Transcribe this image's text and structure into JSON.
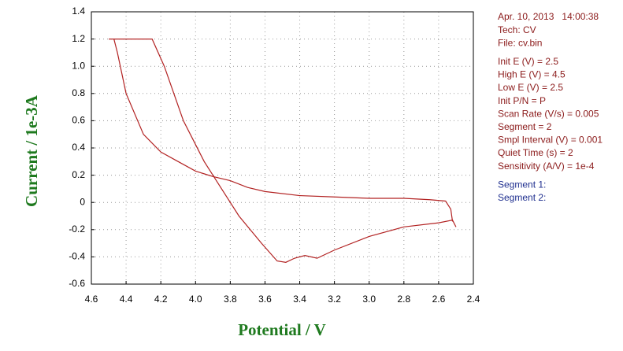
{
  "chart_data": {
    "type": "line",
    "xlabel": "Potential / V",
    "ylabel": "Current / 1e-3A",
    "x": [
      2.52,
      2.53,
      2.56,
      2.65,
      2.8,
      3.0,
      3.2,
      3.4,
      3.6,
      3.7,
      3.8,
      3.9,
      3.95,
      4.0,
      4.1,
      4.2,
      4.3,
      4.4,
      4.45,
      4.47,
      4.5,
      4.25,
      4.18,
      4.07,
      3.95,
      3.85,
      3.75,
      3.62,
      3.53,
      3.48,
      3.43,
      3.37,
      3.3,
      3.2,
      3.0,
      2.8,
      2.6,
      2.52,
      2.5
    ],
    "values": [
      -0.14,
      -0.05,
      0.01,
      0.02,
      0.03,
      0.03,
      0.04,
      0.05,
      0.08,
      0.11,
      0.16,
      0.19,
      0.21,
      0.23,
      0.3,
      0.37,
      0.5,
      0.8,
      1.1,
      1.2,
      1.2,
      1.2,
      1.0,
      0.6,
      0.3,
      0.1,
      -0.1,
      -0.3,
      -0.43,
      -0.44,
      -0.41,
      -0.39,
      -0.41,
      -0.35,
      -0.25,
      -0.18,
      -0.15,
      -0.13,
      -0.18
    ],
    "color": "#b22222",
    "xlim": [
      4.6,
      2.4
    ],
    "xticks": [
      4.6,
      4.4,
      4.2,
      {
        "value": 4,
        "label": "4.0"
      },
      3.8,
      3.6,
      3.4,
      3.2,
      {
        "value": 3,
        "label": "3.0"
      },
      2.8,
      2.6,
      2.4
    ],
    "ylim": [
      -0.6,
      1.4
    ],
    "yticks": [
      -0.6,
      -0.4,
      -0.2,
      0,
      0.2,
      0.4,
      0.6,
      0.8,
      {
        "value": 1,
        "label": "1.0"
      },
      1.2,
      1.4
    ],
    "grid": true,
    "info": [
      [
        "Apr. 10, 2013   14:00:38",
        "Tech: CV",
        "File: cv.bin"
      ],
      [
        "Init E (V) = 2.5",
        "High E (V) = 4.5",
        "Low E (V) = 2.5",
        "Init P/N = P",
        "Scan Rate (V/s) = 0.005",
        "Segment = 2",
        "Smpl Interval (V) = 0.001",
        "Quiet Time (s) = 2",
        "Sensitivity (A/V) = 1e-4"
      ],
      [
        "Segment 1:",
        "Segment 2:"
      ]
    ]
  }
}
